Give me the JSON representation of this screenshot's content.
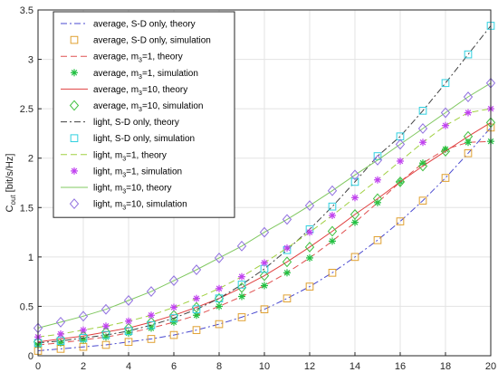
{
  "chart_data": {
    "type": "line",
    "title": "",
    "xlabel": "",
    "ylabel": "C",
    "ylabel_sub": "out",
    "ylabel_unit": " [bit/s/Hz]",
    "xlim": [
      0,
      20
    ],
    "ylim": [
      0,
      3.5
    ],
    "xticks": [
      "0",
      "2",
      "4",
      "6",
      "8",
      "10",
      "12",
      "14",
      "16",
      "18",
      "20"
    ],
    "yticks": [
      "0",
      "0.5",
      "1",
      "1.5",
      "2",
      "2.5",
      "3",
      "3.5"
    ],
    "grid": true,
    "legend_position": "top-left",
    "x": [
      0,
      1,
      2,
      3,
      4,
      5,
      6,
      7,
      8,
      9,
      10,
      11,
      12,
      13,
      14,
      15,
      16,
      17,
      18,
      19,
      20
    ],
    "series": [
      {
        "id": "avg-sd-theory",
        "name": "average, S-D only, theory",
        "style": "theory",
        "dash": "7 3 2 3",
        "color": "#4a4ad0",
        "marker": "none",
        "values": [
          0.05,
          0.07,
          0.09,
          0.11,
          0.14,
          0.17,
          0.21,
          0.26,
          0.32,
          0.39,
          0.47,
          0.58,
          0.7,
          0.84,
          1.0,
          1.17,
          1.36,
          1.57,
          1.8,
          2.05,
          2.31
        ]
      },
      {
        "id": "avg-sd-sim",
        "name": "average, S-D only, simulation",
        "style": "simulation",
        "color": "#e0a030",
        "marker": "square",
        "values": [
          0.05,
          0.07,
          0.09,
          0.11,
          0.14,
          0.17,
          0.21,
          0.26,
          0.32,
          0.39,
          0.47,
          0.58,
          0.7,
          0.84,
          1.0,
          1.17,
          1.36,
          1.57,
          1.8,
          2.05,
          2.31
        ]
      },
      {
        "id": "avg-m1-theory",
        "name": "average, m_3=1, theory",
        "style": "theory",
        "dash": "7 4",
        "color": "#e05050",
        "marker": "none",
        "values": [
          0.11,
          0.13,
          0.16,
          0.19,
          0.23,
          0.28,
          0.34,
          0.41,
          0.5,
          0.6,
          0.71,
          0.84,
          0.99,
          1.16,
          1.35,
          1.55,
          1.76,
          1.95,
          2.09,
          2.16,
          2.17
        ]
      },
      {
        "id": "avg-m1-sim",
        "name": "average, m_3=1, simulation",
        "style": "simulation",
        "color": "#20c040",
        "marker": "star",
        "values": [
          0.11,
          0.13,
          0.16,
          0.19,
          0.23,
          0.28,
          0.34,
          0.41,
          0.5,
          0.6,
          0.71,
          0.84,
          0.99,
          1.16,
          1.35,
          1.55,
          1.76,
          1.95,
          2.09,
          2.16,
          2.17
        ]
      },
      {
        "id": "avg-m10-theory",
        "name": "average, m_3=10, theory",
        "style": "theory",
        "dash": "",
        "color": "#e04040",
        "marker": "none",
        "values": [
          0.14,
          0.17,
          0.2,
          0.24,
          0.28,
          0.34,
          0.41,
          0.49,
          0.58,
          0.69,
          0.81,
          0.95,
          1.1,
          1.26,
          1.43,
          1.59,
          1.76,
          1.92,
          2.07,
          2.22,
          2.36
        ]
      },
      {
        "id": "avg-m10-sim",
        "name": "average, m_3=10, simulation",
        "style": "simulation",
        "color": "#40c040",
        "marker": "diamond",
        "values": [
          0.14,
          0.17,
          0.2,
          0.24,
          0.28,
          0.34,
          0.41,
          0.49,
          0.58,
          0.69,
          0.81,
          0.95,
          1.1,
          1.26,
          1.43,
          1.59,
          1.76,
          1.92,
          2.07,
          2.22,
          2.36
        ]
      },
      {
        "id": "light-sd-theory",
        "name": "light, S-D only, theory",
        "style": "theory",
        "dash": "7 3 2 3",
        "color": "#404040",
        "marker": "none",
        "values": [
          0.13,
          0.15,
          0.18,
          0.21,
          0.25,
          0.31,
          0.38,
          0.47,
          0.58,
          0.72,
          0.88,
          1.07,
          1.28,
          1.51,
          1.76,
          2.02,
          2.22,
          2.48,
          2.76,
          3.05,
          3.34
        ]
      },
      {
        "id": "light-sd-sim",
        "name": "light, S-D only, simulation",
        "style": "simulation",
        "color": "#30d0e0",
        "marker": "square",
        "values": [
          0.13,
          0.15,
          0.18,
          0.21,
          0.25,
          0.31,
          0.38,
          0.47,
          0.58,
          0.72,
          0.88,
          1.07,
          1.28,
          1.51,
          1.76,
          2.02,
          2.22,
          2.48,
          2.76,
          3.05,
          3.34
        ]
      },
      {
        "id": "light-m1-theory",
        "name": "light, m_3=1, theory",
        "style": "theory",
        "dash": "7 4",
        "color": "#a0d040",
        "marker": "none",
        "values": [
          0.19,
          0.22,
          0.26,
          0.3,
          0.35,
          0.41,
          0.49,
          0.58,
          0.68,
          0.8,
          0.94,
          1.09,
          1.25,
          1.42,
          1.6,
          1.78,
          1.97,
          2.16,
          2.33,
          2.46,
          2.5
        ]
      },
      {
        "id": "light-m1-sim",
        "name": "light, m_3=1, simulation",
        "style": "simulation",
        "color": "#c040f0",
        "marker": "star",
        "values": [
          0.19,
          0.22,
          0.26,
          0.3,
          0.35,
          0.41,
          0.49,
          0.58,
          0.68,
          0.8,
          0.94,
          1.09,
          1.25,
          1.42,
          1.6,
          1.78,
          1.97,
          2.16,
          2.33,
          2.46,
          2.5
        ]
      },
      {
        "id": "light-m10-theory",
        "name": "light, m_3=10, theory",
        "style": "theory",
        "dash": "",
        "color": "#80c860",
        "marker": "none",
        "values": [
          0.28,
          0.34,
          0.4,
          0.47,
          0.56,
          0.65,
          0.76,
          0.87,
          0.99,
          1.11,
          1.25,
          1.38,
          1.52,
          1.67,
          1.83,
          1.98,
          2.14,
          2.3,
          2.46,
          2.62,
          2.76
        ]
      },
      {
        "id": "light-m10-sim",
        "name": "light, m_3=10, simulation",
        "style": "simulation",
        "color": "#9070e0",
        "marker": "diamond",
        "values": [
          0.28,
          0.34,
          0.4,
          0.47,
          0.56,
          0.65,
          0.76,
          0.87,
          0.99,
          1.11,
          1.25,
          1.38,
          1.52,
          1.67,
          1.83,
          1.98,
          2.14,
          2.3,
          2.46,
          2.62,
          2.76
        ]
      }
    ]
  }
}
